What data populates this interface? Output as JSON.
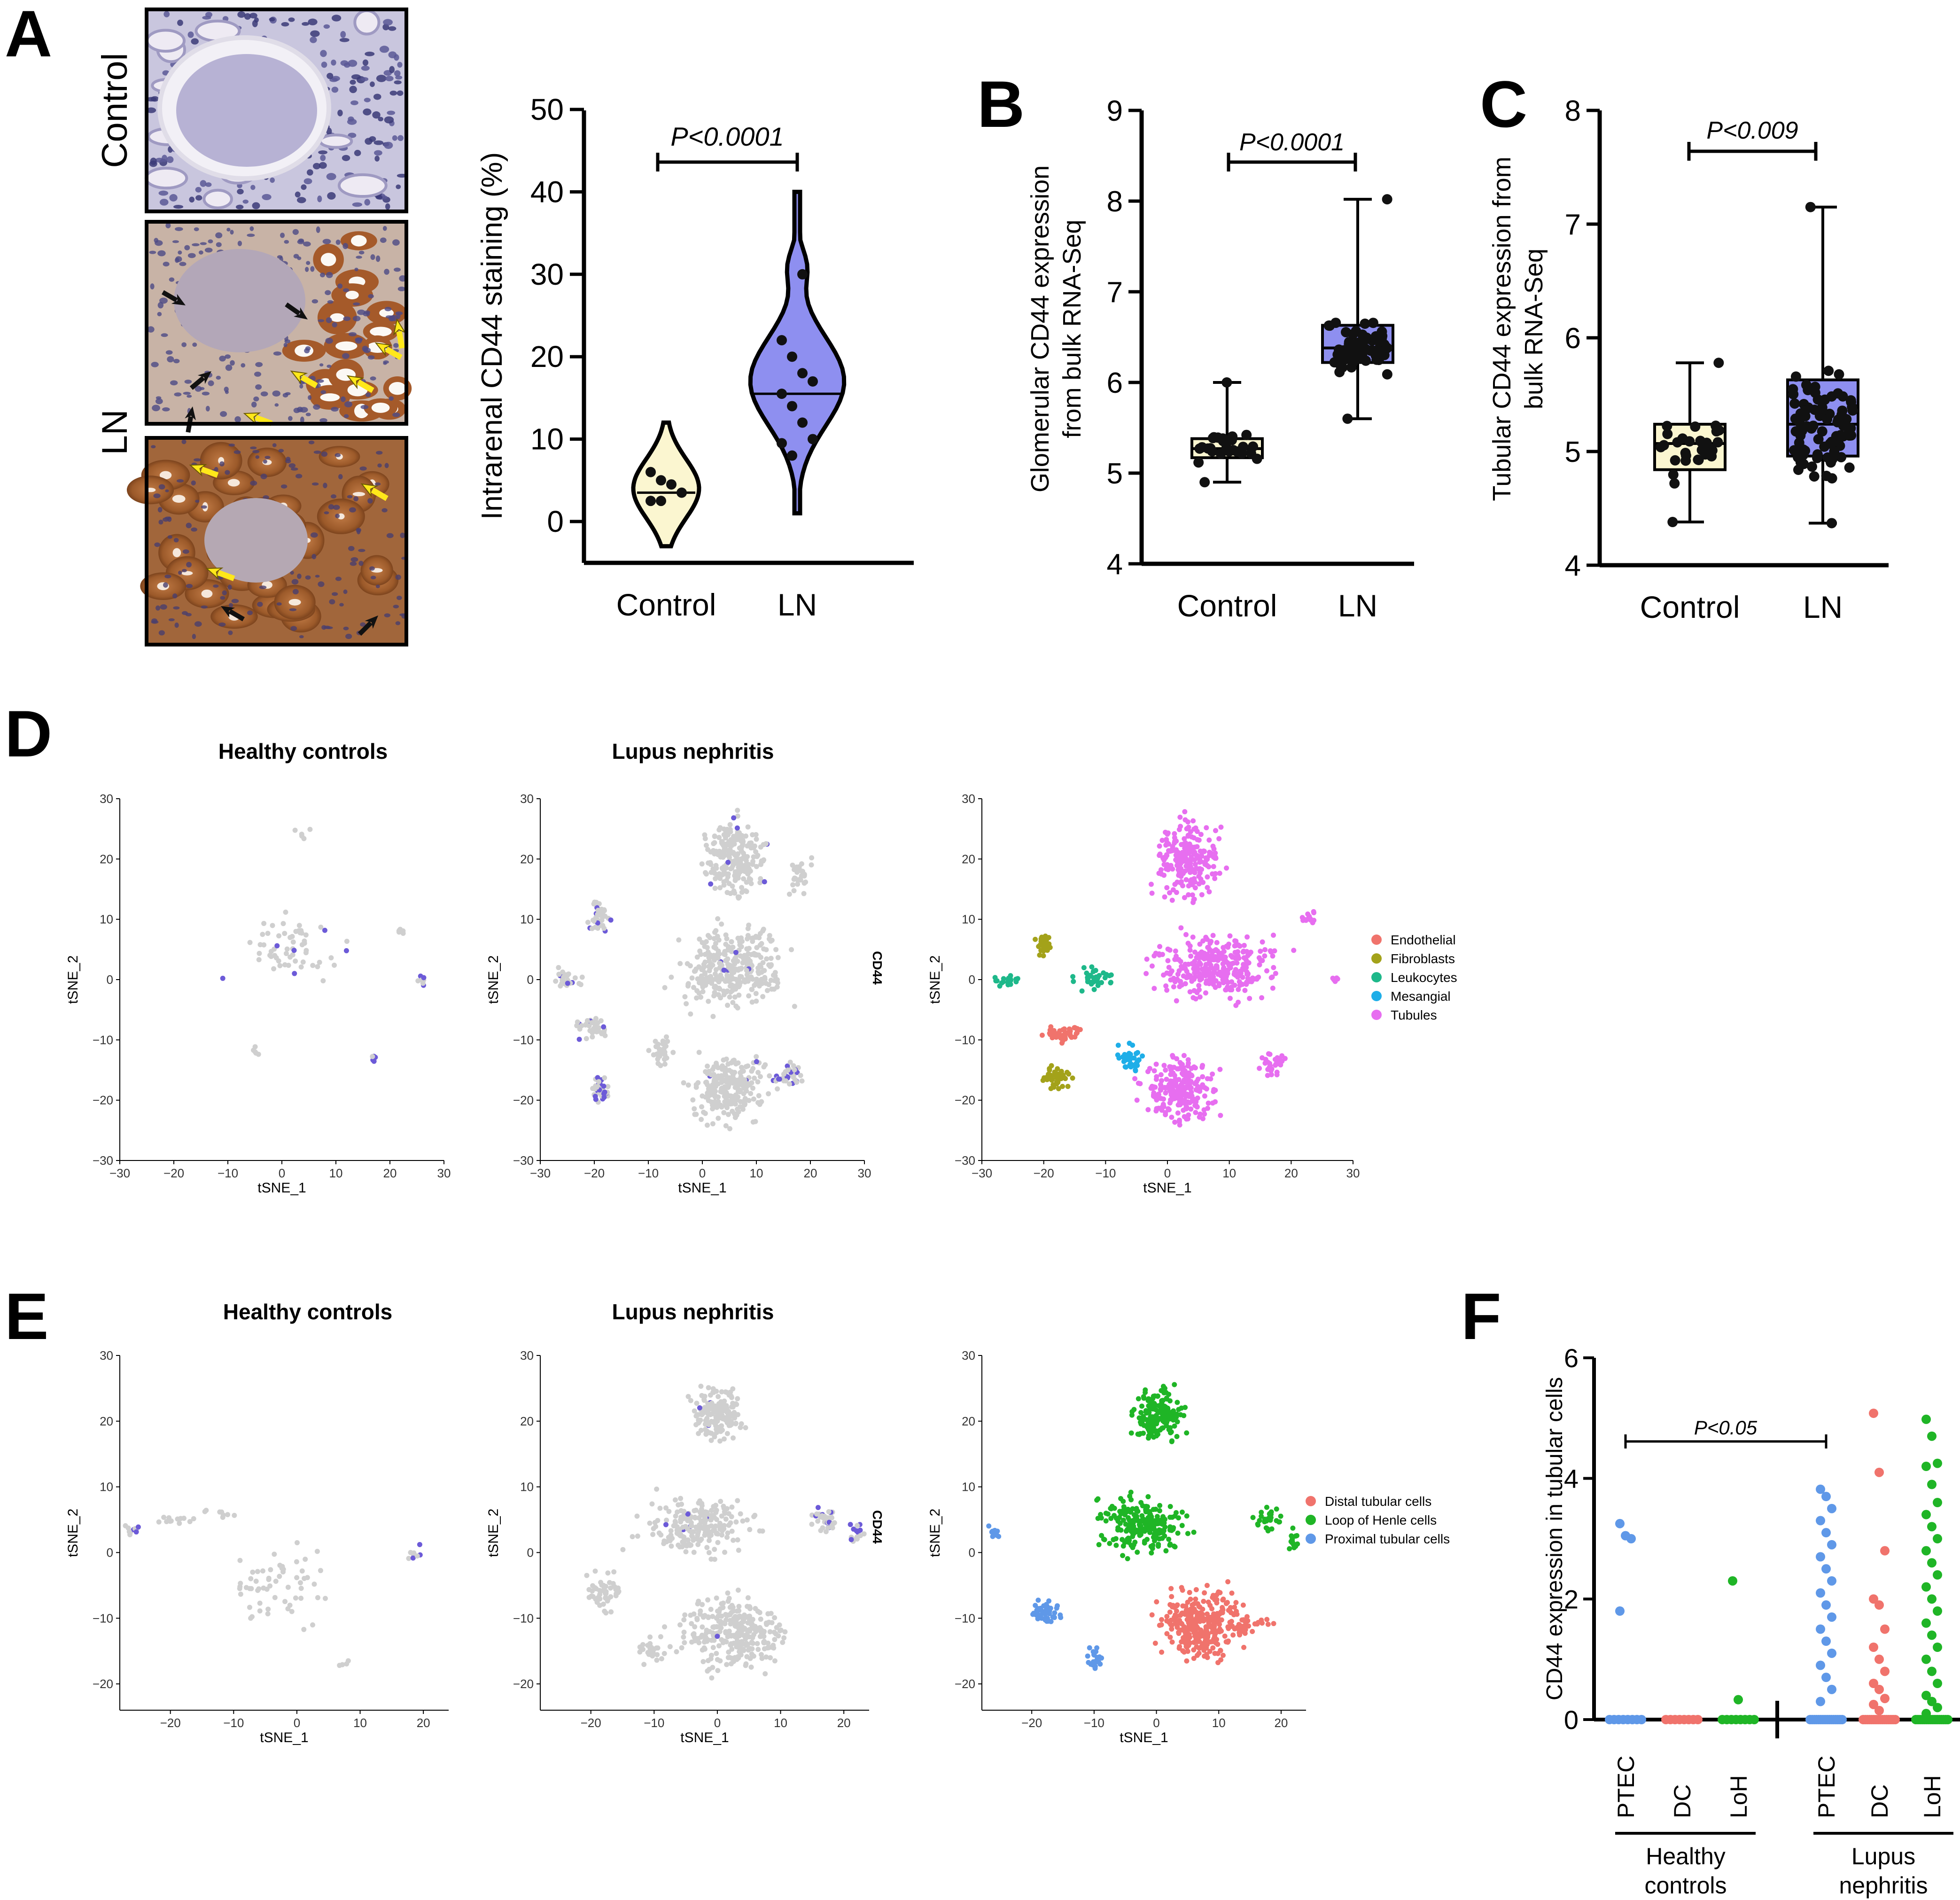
{
  "panels": {
    "A": {
      "letter": "A",
      "row_labels": [
        "Control",
        "LN"
      ],
      "chart_data": {
        "type": "violin",
        "ylabel": "Intrarenal CD44 staining (%)",
        "ylim": [
          0,
          50
        ],
        "yticks": [
          0,
          10,
          20,
          30,
          40,
          50
        ],
        "categories": [
          "Control",
          "LN"
        ],
        "medians": [
          3.5,
          15.5
        ],
        "ranges": [
          [
            -3,
            12
          ],
          [
            1,
            40
          ]
        ],
        "points": [
          [
            6,
            5,
            4.5,
            3.5,
            2.5,
            2.5
          ],
          [
            22,
            20,
            18,
            17,
            15.5,
            14,
            12,
            10,
            9.5,
            8,
            30
          ]
        ],
        "colors": [
          "#fbf6d0",
          "#8e8ff0"
        ],
        "pvalue": "P<0.0001"
      }
    },
    "B": {
      "letter": "B",
      "chart_data": {
        "type": "box",
        "ylabel_lines": [
          "Glomerular CD44 expression",
          "from bulk RNA-Seq"
        ],
        "ylim": [
          4,
          9
        ],
        "yticks": [
          4,
          5,
          6,
          7,
          8,
          9
        ],
        "categories": [
          "Control",
          "LN"
        ],
        "boxes": [
          {
            "min": 4.9,
            "q1": 5.17,
            "median": 5.27,
            "q3": 5.38,
            "max": 6.0
          },
          {
            "min": 5.6,
            "q1": 6.22,
            "median": 6.38,
            "q3": 6.63,
            "max": 8.02
          }
        ],
        "colors": [
          "#fbf6d0",
          "#8e8ff0"
        ],
        "pvalue": "P<0.0001"
      }
    },
    "C": {
      "letter": "C",
      "chart_data": {
        "type": "box",
        "ylabel_lines": [
          "Tubular CD44 expression from",
          "bulk RNA-Seq"
        ],
        "ylim": [
          4,
          8
        ],
        "yticks": [
          4,
          5,
          6,
          7,
          8
        ],
        "categories": [
          "Control",
          "LN"
        ],
        "boxes": [
          {
            "min": 4.38,
            "q1": 4.84,
            "median": 5.07,
            "q3": 5.24,
            "max": 5.78
          },
          {
            "min": 4.37,
            "q1": 4.96,
            "median": 5.24,
            "q3": 5.63,
            "max": 7.15
          }
        ],
        "colors": [
          "#fbf6d0",
          "#8e8ff0"
        ],
        "pvalue": "P<0.009"
      }
    },
    "D": {
      "letter": "D",
      "titles": [
        "Healthy controls",
        "Lupus nephritis"
      ],
      "feature_label": "CD44",
      "xlabel": "tSNE_1",
      "ylabel": "tSNE_2",
      "xticks": [
        -30,
        -20,
        -10,
        0,
        10,
        20,
        30
      ],
      "yticks": [
        -30,
        -20,
        -10,
        0,
        10,
        20,
        30
      ],
      "legend": [
        {
          "label": "Endothelial",
          "color": "#f0736c"
        },
        {
          "label": "Fibroblasts",
          "color": "#a3a21a"
        },
        {
          "label": "Leukocytes",
          "color": "#1eb88a"
        },
        {
          "label": "Mesangial",
          "color": "#1eaee8"
        },
        {
          "label": "Tubules",
          "color": "#e76ef0"
        }
      ]
    },
    "E": {
      "letter": "E",
      "titles": [
        "Healthy controls",
        "Lupus nephritis"
      ],
      "feature_label": "CD44",
      "xlabel": "tSNE_1",
      "ylabel": "tSNE_2",
      "xticks": [
        -20,
        -10,
        0,
        10,
        20
      ],
      "yticks": [
        -20,
        -10,
        0,
        10,
        20,
        30
      ],
      "legend": [
        {
          "label": "Distal tubular cells",
          "color": "#f0736c"
        },
        {
          "label": "Loop of Henle cells",
          "color": "#1fb526"
        },
        {
          "label": "Proximal tubular cells",
          "color": "#5f98e8"
        }
      ]
    },
    "F": {
      "letter": "F",
      "chart_data": {
        "type": "scatter",
        "ylabel": "CD44 expression in tubular cells",
        "ylim": [
          0,
          6
        ],
        "yticks": [
          0,
          2,
          4,
          6
        ],
        "categories": [
          "PTEC",
          "DC",
          "LoH",
          "PTEC",
          "DC",
          "LoH"
        ],
        "groups": [
          "Healthy controls",
          "Lupus nephritis"
        ],
        "group_label_lines": [
          [
            "Healthy",
            "controls"
          ],
          [
            "Lupus",
            "nephritis"
          ]
        ],
        "colors": [
          "#5f98e8",
          "#f0736c",
          "#1fb526"
        ],
        "nonzero_values": [
          [
            3.25,
            3.05,
            3.0,
            1.8
          ],
          [],
          [
            2.3,
            0.33
          ],
          [
            3.82,
            3.7,
            3.5,
            3.3,
            3.1,
            2.9,
            2.7,
            2.5,
            2.3,
            2.1,
            1.9,
            1.7,
            1.5,
            1.3,
            1.1,
            0.9,
            0.7,
            0.5,
            0.3
          ],
          [
            5.08,
            4.1,
            2.8,
            2.0,
            1.9,
            1.5,
            1.2,
            1.0,
            0.8,
            0.6,
            0.5,
            0.35,
            0.25,
            0.15
          ],
          [
            4.98,
            4.7,
            4.25,
            4.2,
            3.9,
            3.6,
            3.4,
            3.2,
            3.0,
            2.8,
            2.6,
            2.4,
            2.2,
            2.0,
            1.8,
            1.6,
            1.4,
            1.2,
            1.0,
            0.8,
            0.6,
            0.4,
            0.3,
            0.2,
            0.1
          ]
        ],
        "pvalue": "P<0.05"
      }
    }
  }
}
